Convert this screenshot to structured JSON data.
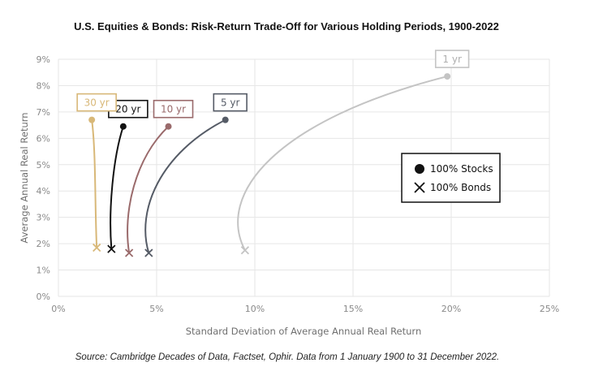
{
  "chart_data": {
    "type": "scatter",
    "title": "U.S. Equities & Bonds: Risk-Return Trade-Off for Various Holding Periods, 1900-2022",
    "xlabel": "Standard Deviation of Average Annual Real Return",
    "ylabel": "Average Annual Real Return",
    "xlim": [
      0,
      25
    ],
    "ylim": [
      0,
      9
    ],
    "x_ticks": [
      0,
      5,
      10,
      15,
      20,
      25
    ],
    "x_tick_labels": [
      "0%",
      "5%",
      "10%",
      "15%",
      "20%",
      "25%"
    ],
    "y_ticks": [
      0,
      1,
      2,
      3,
      4,
      5,
      6,
      7,
      8,
      9
    ],
    "y_tick_labels": [
      "0%",
      "1%",
      "2%",
      "3%",
      "4%",
      "5%",
      "6%",
      "7%",
      "8%",
      "9%"
    ],
    "grid": true,
    "legend": {
      "placement": "center-right",
      "entries": [
        {
          "marker": "dot",
          "label": "100% Stocks"
        },
        {
          "marker": "x",
          "label": "100% Bonds"
        }
      ]
    },
    "series": [
      {
        "name": "1 yr",
        "color": "#c4c4c4",
        "stocks": [
          19.8,
          8.35
        ],
        "bonds": [
          9.5,
          1.75
        ],
        "bulge": 0.45
      },
      {
        "name": "5 yr",
        "color": "#555b66",
        "stocks": [
          8.5,
          6.7
        ],
        "bonds": [
          4.6,
          1.65
        ],
        "bulge": 0.2
      },
      {
        "name": "10 yr",
        "color": "#9a6a6b",
        "stocks": [
          5.6,
          6.45
        ],
        "bonds": [
          3.6,
          1.65
        ],
        "bulge": 0.1
      },
      {
        "name": "20 yr",
        "color": "#111111",
        "stocks": [
          3.3,
          6.45
        ],
        "bonds": [
          2.7,
          1.8
        ],
        "bulge": 0.05
      },
      {
        "name": "30 yr",
        "color": "#d8b878",
        "stocks": [
          1.7,
          6.7
        ],
        "bonds": [
          1.95,
          1.85
        ],
        "bulge": 0.03
      }
    ]
  },
  "source_note": "Source: Cambridge Decades of Data, Factset, Ophir. Data from 1 January 1900 to 31 December 2022."
}
